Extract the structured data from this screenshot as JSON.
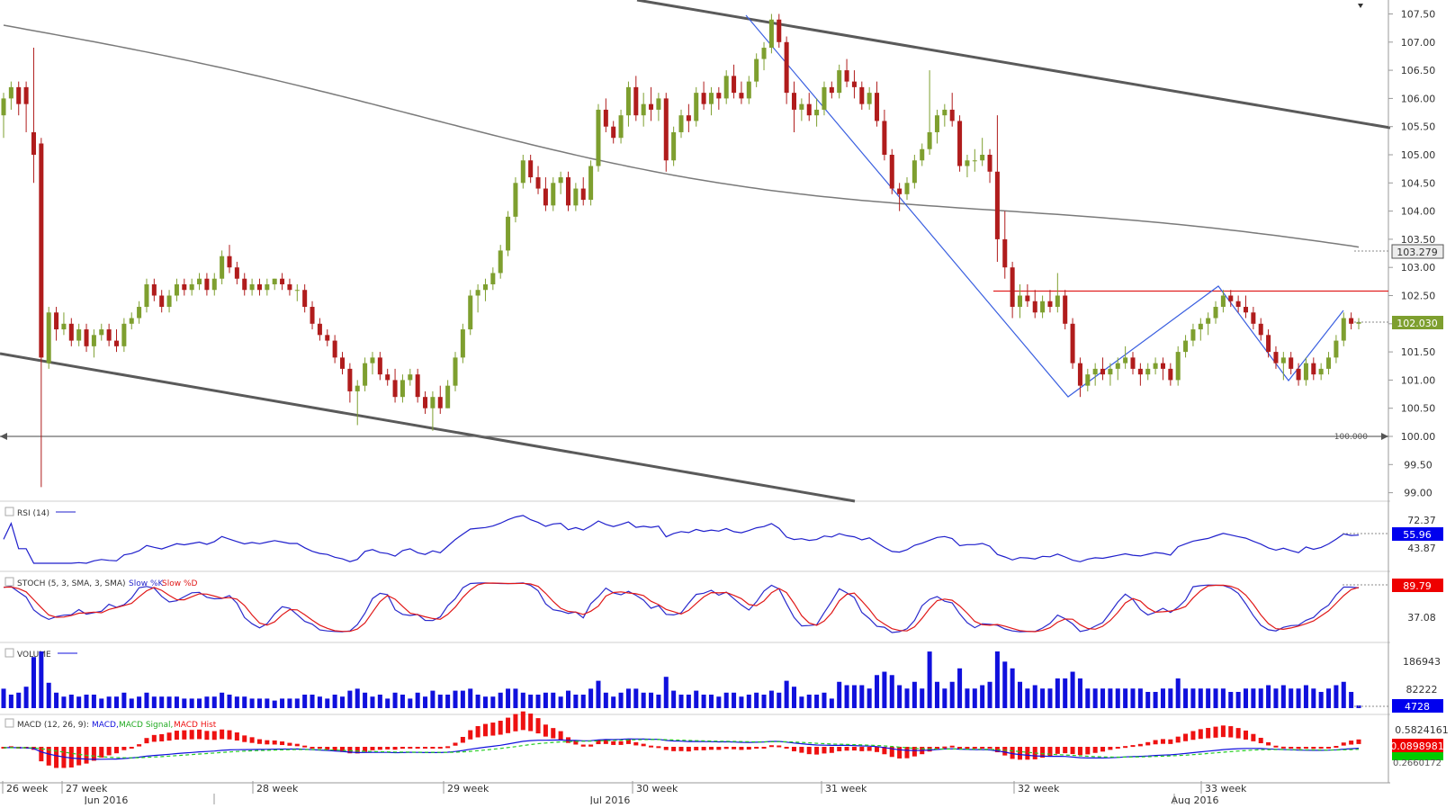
{
  "chart_data": {
    "type": "candlestick",
    "instrument_note": "",
    "price_panel": {
      "y_ticks": [
        "107.50",
        "107.00",
        "106.50",
        "106.00",
        "105.50",
        "105.00",
        "104.50",
        "104.00",
        "103.50",
        "103.00",
        "102.50",
        "102.00",
        "101.50",
        "101.00",
        "100.50",
        "100.00",
        "99.50",
        "99.00"
      ],
      "y_range": [
        98.85,
        107.75
      ],
      "last_price_label": "102.030",
      "ma_value_label": "103.279",
      "level_label": "100.000",
      "level_value": 100.0,
      "resistance_value": 102.58,
      "candles_ohlc": [
        [
          105.7,
          106.1,
          105.3,
          106.0
        ],
        [
          106.0,
          106.3,
          105.8,
          106.2
        ],
        [
          106.2,
          106.3,
          105.7,
          105.9
        ],
        [
          106.2,
          106.3,
          105.4,
          105.9
        ],
        [
          105.4,
          106.9,
          104.5,
          105.0
        ],
        [
          105.2,
          105.3,
          99.1,
          101.4
        ],
        [
          101.3,
          102.3,
          101.2,
          102.2
        ],
        [
          102.2,
          102.3,
          101.7,
          101.9
        ],
        [
          101.9,
          102.2,
          101.8,
          102.0
        ],
        [
          102.0,
          102.1,
          101.6,
          101.7
        ],
        [
          101.7,
          102.0,
          101.6,
          101.9
        ],
        [
          101.9,
          102.0,
          101.5,
          101.6
        ],
        [
          101.6,
          101.9,
          101.4,
          101.8
        ],
        [
          101.8,
          102.0,
          101.7,
          101.9
        ],
        [
          101.9,
          102.0,
          101.6,
          101.7
        ],
        [
          101.7,
          101.9,
          101.5,
          101.6
        ],
        [
          101.6,
          102.1,
          101.5,
          102.0
        ],
        [
          102.0,
          102.2,
          101.9,
          102.1
        ],
        [
          102.1,
          102.4,
          102.0,
          102.3
        ],
        [
          102.3,
          102.8,
          102.2,
          102.7
        ],
        [
          102.7,
          102.8,
          102.4,
          102.5
        ],
        [
          102.5,
          102.6,
          102.2,
          102.3
        ],
        [
          102.3,
          102.6,
          102.2,
          102.5
        ],
        [
          102.5,
          102.8,
          102.4,
          102.7
        ],
        [
          102.7,
          102.8,
          102.5,
          102.6
        ],
        [
          102.6,
          102.8,
          102.5,
          102.7
        ],
        [
          102.7,
          102.9,
          102.6,
          102.8
        ],
        [
          102.8,
          102.9,
          102.5,
          102.6
        ],
        [
          102.6,
          102.9,
          102.5,
          102.8
        ],
        [
          102.8,
          103.3,
          102.7,
          103.2
        ],
        [
          103.2,
          103.4,
          102.9,
          103.0
        ],
        [
          103.0,
          103.1,
          102.7,
          102.8
        ],
        [
          102.8,
          102.9,
          102.5,
          102.6
        ],
        [
          102.6,
          102.8,
          102.5,
          102.7
        ],
        [
          102.7,
          102.8,
          102.5,
          102.6
        ],
        [
          102.6,
          102.8,
          102.5,
          102.7
        ],
        [
          102.7,
          102.8,
          102.6,
          102.8
        ],
        [
          102.8,
          102.9,
          102.6,
          102.7
        ],
        [
          102.7,
          102.8,
          102.5,
          102.6
        ],
        [
          102.6,
          102.7,
          102.4,
          102.6
        ],
        [
          102.6,
          102.7,
          102.2,
          102.3
        ],
        [
          102.3,
          102.4,
          101.9,
          102.0
        ],
        [
          102.0,
          102.1,
          101.7,
          101.8
        ],
        [
          101.8,
          101.9,
          101.6,
          101.7
        ],
        [
          101.7,
          101.8,
          101.3,
          101.4
        ],
        [
          101.4,
          101.5,
          101.1,
          101.2
        ],
        [
          101.2,
          101.3,
          100.6,
          100.8
        ],
        [
          100.8,
          101.0,
          100.2,
          100.9
        ],
        [
          100.9,
          101.4,
          100.8,
          101.3
        ],
        [
          101.3,
          101.5,
          101.1,
          101.4
        ],
        [
          101.4,
          101.5,
          101.0,
          101.1
        ],
        [
          101.1,
          101.2,
          100.9,
          101.0
        ],
        [
          101.0,
          101.2,
          100.6,
          100.7
        ],
        [
          100.7,
          101.1,
          100.6,
          101.0
        ],
        [
          101.0,
          101.2,
          100.9,
          101.1
        ],
        [
          101.1,
          101.2,
          100.6,
          100.7
        ],
        [
          100.7,
          100.8,
          100.4,
          100.5
        ],
        [
          100.5,
          100.8,
          100.1,
          100.7
        ],
        [
          100.7,
          100.9,
          100.4,
          100.5
        ],
        [
          100.5,
          101.0,
          100.5,
          100.9
        ],
        [
          100.9,
          101.5,
          100.8,
          101.4
        ],
        [
          101.4,
          102.0,
          101.3,
          101.9
        ],
        [
          101.9,
          102.6,
          101.8,
          102.5
        ],
        [
          102.5,
          102.7,
          102.2,
          102.6
        ],
        [
          102.6,
          102.8,
          102.4,
          102.7
        ],
        [
          102.7,
          103.0,
          102.6,
          102.9
        ],
        [
          102.9,
          103.4,
          102.8,
          103.3
        ],
        [
          103.3,
          104.0,
          103.2,
          103.9
        ],
        [
          103.9,
          104.6,
          103.8,
          104.5
        ],
        [
          104.5,
          105.0,
          104.4,
          104.9
        ],
        [
          104.9,
          105.0,
          104.5,
          104.6
        ],
        [
          104.6,
          104.8,
          104.3,
          104.4
        ],
        [
          104.4,
          104.6,
          104.0,
          104.1
        ],
        [
          104.1,
          104.6,
          104.0,
          104.5
        ],
        [
          104.5,
          104.7,
          104.3,
          104.6
        ],
        [
          104.6,
          104.7,
          104.0,
          104.1
        ],
        [
          104.1,
          104.5,
          104.0,
          104.4
        ],
        [
          104.4,
          104.6,
          104.1,
          104.2
        ],
        [
          104.2,
          104.9,
          104.1,
          104.8
        ],
        [
          104.8,
          105.9,
          104.7,
          105.8
        ],
        [
          105.8,
          106.0,
          105.4,
          105.5
        ],
        [
          105.5,
          105.6,
          105.2,
          105.3
        ],
        [
          105.3,
          105.8,
          105.2,
          105.7
        ],
        [
          105.7,
          106.3,
          105.5,
          106.2
        ],
        [
          106.2,
          106.4,
          105.6,
          105.7
        ],
        [
          105.7,
          106.1,
          105.5,
          105.9
        ],
        [
          105.9,
          106.2,
          105.6,
          105.8
        ],
        [
          105.8,
          106.1,
          105.6,
          106.0
        ],
        [
          106.0,
          106.1,
          104.7,
          104.9
        ],
        [
          104.9,
          105.5,
          104.8,
          105.4
        ],
        [
          105.4,
          105.8,
          105.3,
          105.7
        ],
        [
          105.7,
          105.9,
          105.4,
          105.6
        ],
        [
          105.6,
          106.2,
          105.5,
          106.1
        ],
        [
          106.1,
          106.3,
          105.8,
          105.9
        ],
        [
          105.9,
          106.2,
          105.7,
          106.1
        ],
        [
          106.1,
          106.2,
          105.8,
          106.0
        ],
        [
          106.0,
          106.5,
          105.9,
          106.4
        ],
        [
          106.4,
          106.6,
          106.0,
          106.1
        ],
        [
          106.1,
          106.3,
          105.9,
          106.0
        ],
        [
          106.0,
          106.4,
          105.9,
          106.3
        ],
        [
          106.3,
          106.8,
          106.2,
          106.7
        ],
        [
          106.7,
          107.0,
          106.5,
          106.9
        ],
        [
          106.9,
          107.5,
          106.8,
          107.4
        ],
        [
          107.4,
          107.5,
          106.9,
          107.0
        ],
        [
          107.0,
          107.1,
          105.9,
          106.1
        ],
        [
          106.1,
          106.3,
          105.4,
          105.8
        ],
        [
          105.8,
          106.0,
          105.6,
          105.9
        ],
        [
          105.9,
          106.1,
          105.6,
          105.7
        ],
        [
          105.7,
          106.0,
          105.5,
          105.8
        ],
        [
          105.8,
          106.3,
          105.7,
          106.2
        ],
        [
          106.2,
          106.3,
          106.0,
          106.1
        ],
        [
          106.1,
          106.6,
          106.0,
          106.5
        ],
        [
          106.5,
          106.7,
          106.2,
          106.3
        ],
        [
          106.3,
          106.5,
          106.0,
          106.2
        ],
        [
          106.2,
          106.3,
          105.8,
          105.9
        ],
        [
          105.9,
          106.2,
          105.8,
          106.1
        ],
        [
          106.1,
          106.3,
          105.5,
          105.6
        ],
        [
          105.6,
          105.8,
          104.9,
          105.0
        ],
        [
          105.0,
          105.1,
          104.3,
          104.4
        ],
        [
          104.4,
          104.5,
          104.0,
          104.3
        ],
        [
          104.3,
          104.6,
          104.2,
          104.5
        ],
        [
          104.5,
          105.0,
          104.4,
          104.9
        ],
        [
          104.9,
          105.2,
          104.8,
          105.1
        ],
        [
          105.1,
          106.5,
          105.0,
          105.4
        ],
        [
          105.4,
          105.8,
          105.2,
          105.7
        ],
        [
          105.7,
          105.9,
          105.5,
          105.8
        ],
        [
          105.8,
          106.1,
          105.5,
          105.6
        ],
        [
          105.6,
          105.7,
          104.7,
          104.8
        ],
        [
          104.8,
          105.0,
          104.6,
          104.9
        ],
        [
          104.9,
          105.1,
          104.7,
          104.9
        ],
        [
          104.9,
          105.3,
          104.8,
          105.0
        ],
        [
          105.0,
          105.1,
          104.5,
          104.7
        ],
        [
          104.7,
          105.7,
          103.1,
          103.5
        ],
        [
          103.5,
          104.0,
          102.8,
          103.0
        ],
        [
          103.0,
          103.1,
          102.1,
          102.3
        ],
        [
          102.3,
          102.7,
          102.1,
          102.5
        ],
        [
          102.5,
          102.7,
          102.3,
          102.4
        ],
        [
          102.4,
          102.6,
          102.1,
          102.2
        ],
        [
          102.2,
          102.5,
          102.1,
          102.4
        ],
        [
          102.4,
          102.6,
          102.2,
          102.3
        ],
        [
          102.3,
          102.9,
          102.2,
          102.5
        ],
        [
          102.5,
          102.6,
          101.9,
          102.0
        ],
        [
          102.0,
          102.1,
          101.2,
          101.3
        ],
        [
          101.3,
          101.4,
          100.7,
          100.9
        ],
        [
          100.9,
          101.2,
          100.8,
          101.1
        ],
        [
          101.1,
          101.3,
          100.9,
          101.2
        ],
        [
          101.2,
          101.4,
          101.0,
          101.1
        ],
        [
          101.1,
          101.3,
          100.9,
          101.2
        ],
        [
          101.2,
          101.4,
          101.0,
          101.3
        ],
        [
          101.3,
          101.6,
          101.2,
          101.4
        ],
        [
          101.4,
          101.5,
          101.1,
          101.2
        ],
        [
          101.2,
          101.3,
          100.9,
          101.1
        ],
        [
          101.1,
          101.3,
          101.0,
          101.2
        ],
        [
          101.2,
          101.4,
          101.1,
          101.3
        ],
        [
          101.3,
          101.4,
          101.0,
          101.2
        ],
        [
          101.2,
          101.3,
          100.9,
          101.0
        ],
        [
          101.0,
          101.6,
          100.9,
          101.5
        ],
        [
          101.5,
          101.8,
          101.4,
          101.7
        ],
        [
          101.7,
          102.0,
          101.6,
          101.9
        ],
        [
          101.9,
          102.1,
          101.7,
          102.0
        ],
        [
          102.0,
          102.2,
          101.8,
          102.1
        ],
        [
          102.1,
          102.4,
          102.0,
          102.3
        ],
        [
          102.3,
          102.6,
          102.2,
          102.5
        ],
        [
          102.5,
          102.6,
          102.3,
          102.4
        ],
        [
          102.4,
          102.5,
          102.2,
          102.3
        ],
        [
          102.3,
          102.5,
          102.1,
          102.2
        ],
        [
          102.2,
          102.3,
          101.9,
          102.0
        ],
        [
          102.0,
          102.1,
          101.7,
          101.8
        ],
        [
          101.8,
          101.9,
          101.4,
          101.5
        ],
        [
          101.5,
          101.6,
          101.2,
          101.3
        ],
        [
          101.3,
          101.5,
          101.0,
          101.4
        ],
        [
          101.4,
          101.5,
          101.1,
          101.2
        ],
        [
          101.2,
          101.3,
          100.9,
          101.0
        ],
        [
          101.0,
          101.4,
          100.9,
          101.3
        ],
        [
          101.3,
          101.4,
          101.0,
          101.1
        ],
        [
          101.1,
          101.3,
          101.0,
          101.2
        ],
        [
          101.2,
          101.5,
          101.1,
          101.4
        ],
        [
          101.4,
          101.8,
          101.3,
          101.7
        ],
        [
          101.7,
          102.2,
          101.6,
          102.1
        ],
        [
          102.1,
          102.2,
          101.9,
          102.0
        ],
        [
          102.0,
          102.1,
          101.9,
          102.03
        ]
      ]
    },
    "rsi_panel": {
      "label": "RSI (14)",
      "y_ticks": [
        "72.37",
        "43.87"
      ],
      "last_value": "55.96"
    },
    "stoch_panel": {
      "label": "STOCH (5, 3, SMA, 3, SMA)",
      "k_label": "Slow %K",
      "d_label": "Slow %D",
      "y_ticks": [
        "37.08"
      ],
      "last_value": "89.79"
    },
    "volume_panel": {
      "label": "VOLUME",
      "y_ticks": [
        "186943",
        "82222"
      ],
      "last_value": "4728"
    },
    "macd_panel": {
      "label": "MACD (12, 26, 9):",
      "macd_label": "MACD,",
      "signal_label": "MACD Signal,",
      "hist_label": "MACD Hist",
      "y_ticks": [
        "0.5824161"
      ],
      "last_value": "0.0898981",
      "partial_labels": [
        "0.2660172"
      ]
    },
    "x_axis": {
      "week_labels": [
        "26 week",
        "27 week",
        "28 week",
        "29 week",
        "30 week",
        "31 week",
        "32 week",
        "33 week"
      ],
      "month_labels": [
        "Jun 2016",
        "Jul 2016",
        "Aug 2016"
      ]
    }
  },
  "colors": {
    "bull": "#7e9f2f",
    "bear": "#b01c1c",
    "trend_channel": "#555555",
    "ma_line": "#777777",
    "zigzag": "#3a5fe0",
    "resistance": "#e02020",
    "rsi_line": "#1f1fcc",
    "stoch_k": "#2a2acc",
    "stoch_d": "#e01818",
    "volume": "#1010dd",
    "macd_hist": "#ee1111",
    "macd_line": "#1111dd",
    "macd_signal": "#22cc22",
    "label_blue_bg": "#0000ee",
    "label_red_bg": "#ee0000",
    "label_green_bg": "#00cc00",
    "label_gray_bg": "#7b7b7b",
    "label_ma_bg": "#ececec"
  }
}
